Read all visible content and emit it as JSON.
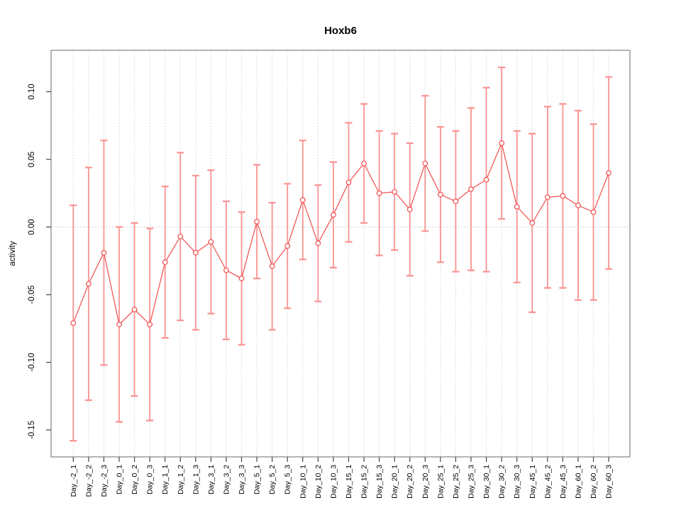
{
  "figure": {
    "title": "Hoxb6"
  },
  "chart_data": {
    "type": "line",
    "title": "Hoxb6",
    "xlabel": "",
    "ylabel": "activity",
    "legend_position": "none",
    "grid": {
      "vertical": "dotted gray line at every category",
      "horizontal": "dotted gray line at y=0 only"
    },
    "marker": "open-circle",
    "error_bars": "symmetric whiskers with end caps",
    "ylim": [
      -0.17,
      0.131
    ],
    "yticks": [
      0.1,
      0.05,
      0.0,
      -0.05,
      -0.1,
      -0.15
    ],
    "ytick_labels": [
      "0.10",
      "0.05",
      "0.00",
      "-0.05",
      "-0.10",
      "-0.15"
    ],
    "categories": [
      "Day_-2_1",
      "Day_-2_2",
      "Day_-2_3",
      "Day_0_1",
      "Day_0_2",
      "Day_0_3",
      "Day_1_1",
      "Day_1_2",
      "Day_1_3",
      "Day_3_1",
      "Day_3_2",
      "Day_3_3",
      "Day_5_1",
      "Day_5_2",
      "Day_5_3",
      "Day_10_1",
      "Day_10_2",
      "Day_10_3",
      "Day_15_1",
      "Day_15_2",
      "Day_15_3",
      "Day_20_1",
      "Day_20_2",
      "Day_20_3",
      "Day_25_1",
      "Day_25_2",
      "Day_25_3",
      "Day_30_1",
      "Day_30_2",
      "Day_30_3",
      "Day_45_1",
      "Day_45_2",
      "Day_45_3",
      "Day_60_1",
      "Day_60_2",
      "Day_60_3"
    ],
    "values": [
      -0.071,
      -0.042,
      -0.019,
      -0.072,
      -0.061,
      -0.072,
      -0.026,
      -0.007,
      -0.019,
      -0.011,
      -0.032,
      -0.038,
      0.004,
      -0.029,
      -0.014,
      0.02,
      -0.012,
      0.009,
      0.033,
      0.047,
      0.025,
      0.026,
      0.013,
      0.047,
      0.024,
      0.019,
      0.028,
      0.035,
      0.062,
      0.015,
      0.003,
      0.022,
      0.023,
      0.016,
      0.011,
      0.04
    ],
    "error_low": [
      -0.158,
      -0.128,
      -0.102,
      -0.144,
      -0.125,
      -0.143,
      -0.082,
      -0.069,
      -0.076,
      -0.064,
      -0.083,
      -0.087,
      -0.038,
      -0.076,
      -0.06,
      -0.024,
      -0.055,
      -0.03,
      -0.011,
      0.003,
      -0.021,
      -0.017,
      -0.036,
      -0.003,
      -0.026,
      -0.033,
      -0.032,
      -0.033,
      0.006,
      -0.041,
      -0.063,
      -0.045,
      -0.045,
      -0.054,
      -0.054,
      -0.031
    ],
    "error_high": [
      0.016,
      0.044,
      0.064,
      0.0,
      0.003,
      -0.001,
      0.03,
      0.055,
      0.038,
      0.042,
      0.019,
      0.011,
      0.046,
      0.018,
      0.032,
      0.064,
      0.031,
      0.048,
      0.077,
      0.091,
      0.071,
      0.069,
      0.062,
      0.097,
      0.074,
      0.071,
      0.088,
      0.103,
      0.118,
      0.071,
      0.069,
      0.089,
      0.091,
      0.086,
      0.076,
      0.111
    ]
  },
  "colors": {
    "series_line": "#f24c4c",
    "marker_stroke": "#f24c4c",
    "marker_fill": "#ffffff",
    "error_bar": "#fb9191",
    "gridline": "#cfcfcf",
    "zero_line": "#c4c4c4",
    "plot_border": "#8c8c8c",
    "tick_mark": "#444444",
    "text": "#000000",
    "background": "#ffffff"
  }
}
